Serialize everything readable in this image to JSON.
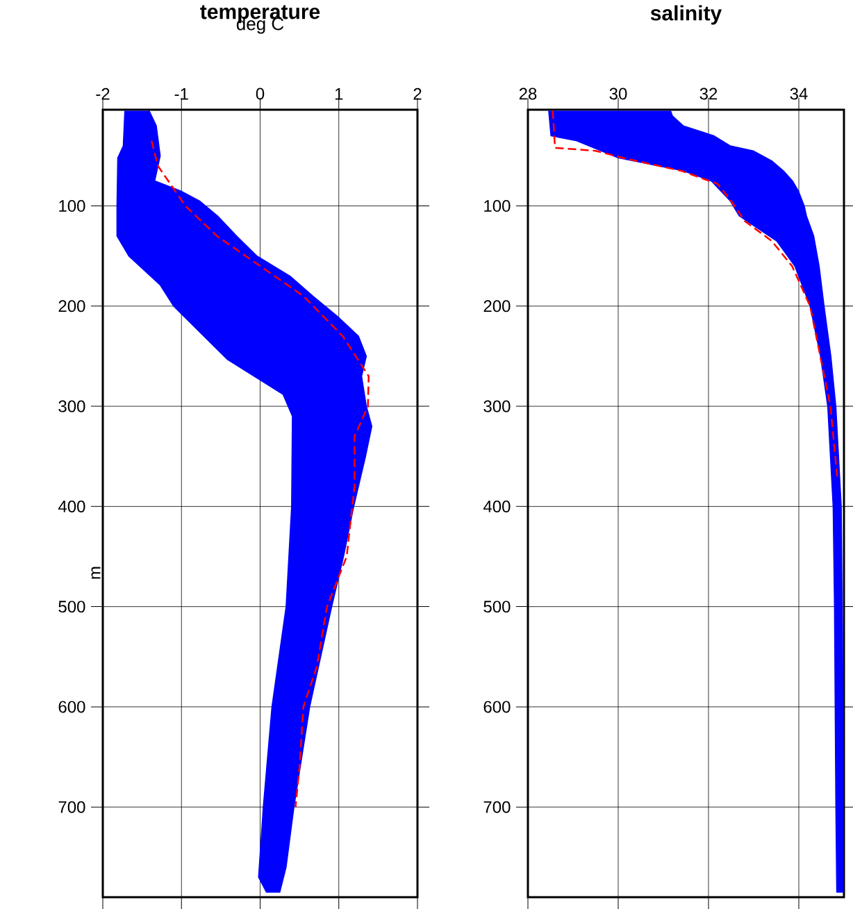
{
  "chart_data": [
    {
      "type": "line",
      "title": "temperature",
      "subtitle": "deg C",
      "ylabel": "m",
      "xlim": [
        -2,
        2
      ],
      "xticks": [
        -2,
        -1,
        0,
        1,
        2
      ],
      "ylim": [
        790,
        4
      ],
      "yticks": [
        100,
        200,
        300,
        400,
        500,
        600,
        700
      ],
      "grid": true,
      "series": [
        {
          "type": "area",
          "color": "#0000ff",
          "x": [
            -1.72,
            -1.74,
            -1.81,
            -1.82,
            -1.82,
            -1.67,
            -1.27,
            -1.1,
            -0.42,
            0.29,
            0.41,
            0.4,
            0.33,
            0.15,
            0.04,
            -0.02,
            0.08,
            0.25,
            0.33,
            0.43,
            0.63,
            0.91,
            1.06,
            1.19,
            1.34,
            1.42,
            1.35,
            1.29,
            1.35,
            1.25,
            0.98,
            0.67,
            0.38,
            -0.04,
            -0.3,
            -0.54,
            -0.77,
            -1.01,
            -1.34,
            -1.27,
            -1.32,
            -1.41
          ],
          "values": [
            5,
            40,
            52,
            100,
            130,
            150,
            179,
            200,
            253,
            288,
            310,
            400,
            500,
            600,
            700,
            770,
            785,
            785,
            760,
            700,
            600,
            500,
            450,
            400,
            350,
            320,
            300,
            270,
            250,
            230,
            210,
            190,
            170,
            150,
            130,
            110,
            95,
            85,
            75,
            50,
            20,
            5
          ]
        },
        {
          "color": "#ff0000",
          "line_style": "dashed",
          "x": [
            -1.38,
            -1.3,
            -0.95,
            -0.55,
            0.0,
            0.55,
            1.05,
            1.38,
            1.37,
            1.2,
            1.2,
            1.1,
            0.85,
            0.72,
            0.55,
            0.5,
            0.45
          ],
          "values": [
            35,
            60,
            100,
            130,
            160,
            190,
            230,
            270,
            300,
            330,
            380,
            450,
            500,
            560,
            600,
            660,
            700
          ]
        }
      ]
    },
    {
      "type": "line",
      "title": "salinity",
      "xlim": [
        28,
        35
      ],
      "xticks": [
        28,
        30,
        32,
        34
      ],
      "ylim": [
        790,
        4
      ],
      "yticks": [
        100,
        200,
        300,
        400,
        500,
        600,
        700
      ],
      "grid": true,
      "series": [
        {
          "type": "area",
          "color": "#0000ff",
          "x": [
            28.46,
            28.51,
            29.08,
            30.0,
            31.44,
            32.06,
            32.48,
            32.68,
            33.51,
            33.91,
            34.25,
            34.48,
            34.64,
            34.76,
            34.79,
            34.82,
            34.84,
            34.98,
            34.98,
            34.94,
            34.82,
            34.71,
            34.56,
            34.45,
            34.33,
            34.17,
            34.12,
            33.99,
            33.86,
            33.66,
            33.4,
            32.99,
            32.48,
            32.12,
            31.44,
            31.2,
            31.16
          ],
          "values": [
            5,
            30,
            35,
            52,
            65,
            75,
            95,
            110,
            135,
            160,
            200,
            250,
            300,
            400,
            500,
            700,
            785,
            785,
            600,
            400,
            300,
            250,
            200,
            160,
            130,
            110,
            100,
            85,
            75,
            65,
            55,
            45,
            40,
            30,
            20,
            10,
            5
          ]
        },
        {
          "color": "#ff0000",
          "line_style": "dashed",
          "x": [
            28.55,
            28.6,
            29.5,
            30.1,
            31.4,
            32.2,
            32.5,
            32.8,
            33.4,
            33.85,
            34.25,
            34.7,
            34.85
          ],
          "values": [
            5,
            42,
            45,
            52,
            65,
            78,
            95,
            115,
            135,
            160,
            200,
            300,
            370
          ]
        }
      ]
    }
  ]
}
